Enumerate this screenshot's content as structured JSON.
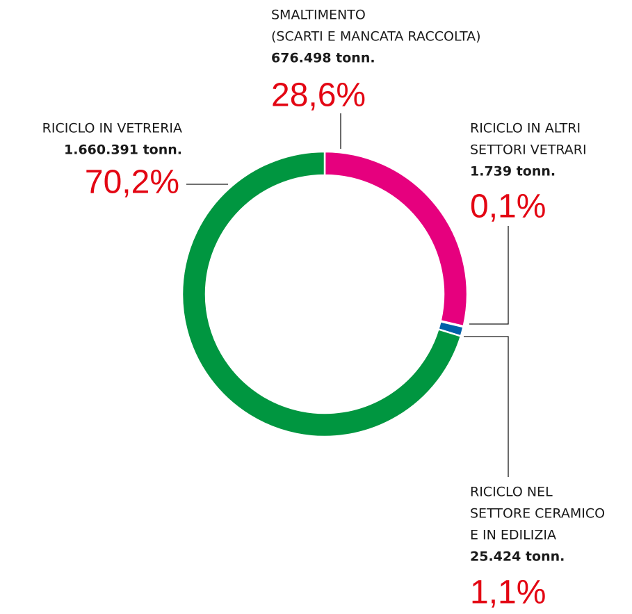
{
  "chart_data": {
    "type": "donut",
    "categories": [
      [
        "SMALTIMENTO",
        "(SCARTI E MANCATA RACCOLTA)"
      ],
      [
        "RICICLO IN ALTRI",
        "SETTORI VETRARI"
      ],
      [
        "RICICLO NEL",
        "SETTORE CERAMICO",
        "E IN EDILIZIA"
      ],
      [
        "RICICLO IN VETRERIA"
      ]
    ],
    "values": [
      676498,
      1739,
      25424,
      1660391
    ],
    "value_labels": [
      "676.498 tonn.",
      "1.739 tonn.",
      "25.424 tonn.",
      "1.660.391 tonn."
    ],
    "percent": [
      28.6,
      0.1,
      1.1,
      70.2
    ],
    "percent_labels": [
      "28,6%",
      "0,1%",
      "1,1%",
      "70,2%"
    ],
    "colors": [
      "#e6007e",
      "#f5b800",
      "#0060a8",
      "#009640"
    ]
  }
}
